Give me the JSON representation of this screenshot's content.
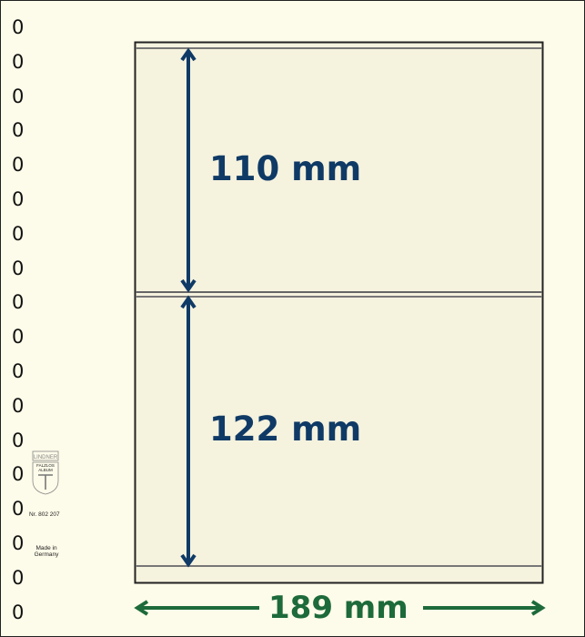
{
  "holes": [
    "0",
    "0",
    "0",
    "0",
    "0",
    "0",
    "0",
    "0",
    "0",
    "0",
    "0",
    "0",
    "0",
    "0",
    "0",
    "0",
    "0",
    "0"
  ],
  "strips": [
    {
      "height_label": "110 mm",
      "height_mm": 110
    },
    {
      "height_label": "122 mm",
      "height_mm": 122
    }
  ],
  "width_label": "189 mm",
  "width_mm": 189,
  "logo": {
    "brand": "LINDNER",
    "line1": "FALZLOS",
    "line2": "ALBUM"
  },
  "article_number": "Nr. 802 207",
  "origin": "Made in Germany",
  "colors": {
    "height_arrow": "#0f3a66",
    "width_arrow": "#1d6a3a",
    "page": "#fdfbe9",
    "strip": "#f5f2de"
  }
}
